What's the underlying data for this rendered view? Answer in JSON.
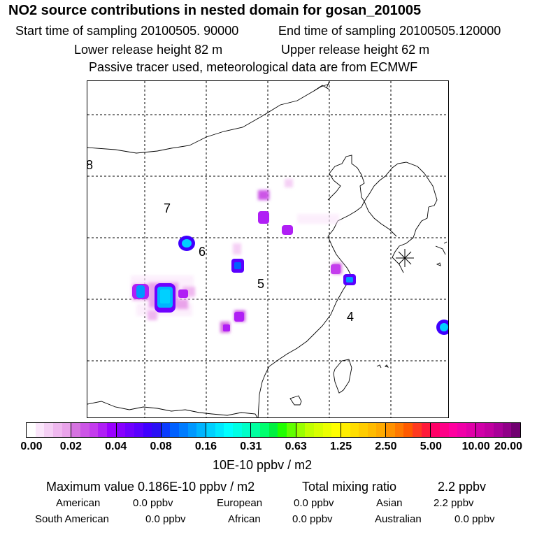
{
  "header": {
    "title": "NO2 source contributions in nested domain for gosan_201005",
    "start_time": "Start time of sampling 20100505. 90000",
    "end_time": "End time of sampling 20100505.120000",
    "lower_release": "Lower release height   82 m",
    "upper_release": "Upper release height   62 m",
    "note": "Passive tracer used, meteorological data are from ECMWF"
  },
  "map": {
    "labels": [
      {
        "id": "8",
        "text": "8"
      },
      {
        "id": "7",
        "text": "7"
      },
      {
        "id": "6",
        "text": "6"
      },
      {
        "id": "5",
        "text": "5"
      },
      {
        "id": "4",
        "text": "4"
      }
    ],
    "receptor_marker": "asterisk-icon"
  },
  "colorbar": {
    "ticks": [
      "0.00",
      "0.02",
      "0.04",
      "0.08",
      "0.16",
      "0.31",
      "0.63",
      "1.25",
      "2.50",
      "5.00",
      "10.00",
      "20.00"
    ],
    "segment_colors": [
      [
        "#ffffff",
        "#fbe6fb",
        "#f5d0f5",
        "#efb8ef",
        "#e9a3ea"
      ],
      [
        "#d573e0",
        "#cc55e6",
        "#c43ced",
        "#b01ff5",
        "#9a00ff"
      ],
      [
        "#8700ff",
        "#6f00ff",
        "#5a00ff",
        "#3f00ff",
        "#2a10f5"
      ],
      [
        "#0a3cff",
        "#0060ff",
        "#007cff",
        "#0098ff",
        "#00b4ff"
      ],
      [
        "#00d0ff",
        "#00e8ff",
        "#00ffff",
        "#00ffe4",
        "#00ffc8"
      ],
      [
        "#00ffa0",
        "#00ff6e",
        "#00f040",
        "#20ff00",
        "#60ff00"
      ],
      [
        "#9aff00",
        "#c2ff00",
        "#d8ff00",
        "#ecff00",
        "#ffff00"
      ],
      [
        "#ffee00",
        "#ffdd00",
        "#ffcc00",
        "#ffbb00",
        "#ffaa00"
      ],
      [
        "#ff9200",
        "#ff7800",
        "#ff5a00",
        "#ff3a20",
        "#ff1a3a"
      ],
      [
        "#ff0066",
        "#ff0088",
        "#ff00a0",
        "#f000a8",
        "#e000a8"
      ],
      [
        "#d000a8",
        "#c000a0",
        "#a80098",
        "#900088",
        "#700070"
      ]
    ],
    "unit": "10E-10 ppbv / m2"
  },
  "footer": {
    "max_label": "Maximum value  0.186E-10 ppbv / m2",
    "total_label": "Total mixing ratio",
    "total_value": "2.2 ppbv",
    "regions": [
      {
        "name": "American",
        "value": "0.0 ppbv"
      },
      {
        "name": "European",
        "value": "0.0 ppbv"
      },
      {
        "name": "Asian",
        "value": "2.2 ppbv"
      },
      {
        "name": "South American",
        "value": "0.0 ppbv"
      },
      {
        "name": "African",
        "value": "0.0 ppbv"
      },
      {
        "name": "Australian",
        "value": "0.0 ppbv"
      }
    ]
  }
}
